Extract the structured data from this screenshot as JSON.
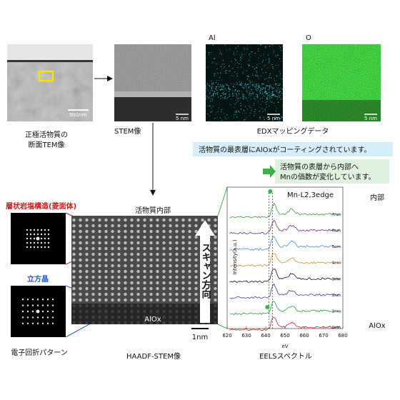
{
  "tem": {
    "caption": [
      "正極活物質の",
      "断面TEM像"
    ],
    "scale": "500nm"
  },
  "stem": {
    "caption": "STEM像",
    "scale": "5 nm"
  },
  "edx": {
    "caption": "EDXマッピングデータ",
    "panels": [
      {
        "label": "Al",
        "scale": "5 nm"
      },
      {
        "label": "O",
        "scale": "5 nm"
      }
    ]
  },
  "notes": [
    "活物質の最表層にAlOxがコーティングされています。",
    "活物質の表層から内部へ",
    "Mnの価数が変化しています。"
  ],
  "diffraction": {
    "caption": "電子回折パターン",
    "layered": "層状岩塩構造(菱面体)",
    "cubic": "立方晶"
  },
  "haadf": {
    "caption": "HAADF-STEM像",
    "top": "活物質内部",
    "bottom": "AlOx",
    "arrow": "スキャン方向",
    "scale": "1nm"
  },
  "eels": {
    "caption": "EELSスペクトル",
    "title": "Mn-L2,3edge",
    "xlabel": "eV",
    "ylabel": "Intensity(a.u.)",
    "xticks": [
      620,
      630,
      640,
      650,
      660,
      670,
      680
    ],
    "depths": [
      "7nm",
      "6nm",
      "5nm",
      "4nm",
      "3nm",
      "2nm",
      "1nm",
      "0nm"
    ]
  },
  "side": {
    "top": "内部",
    "bottom": "AlOx"
  }
}
